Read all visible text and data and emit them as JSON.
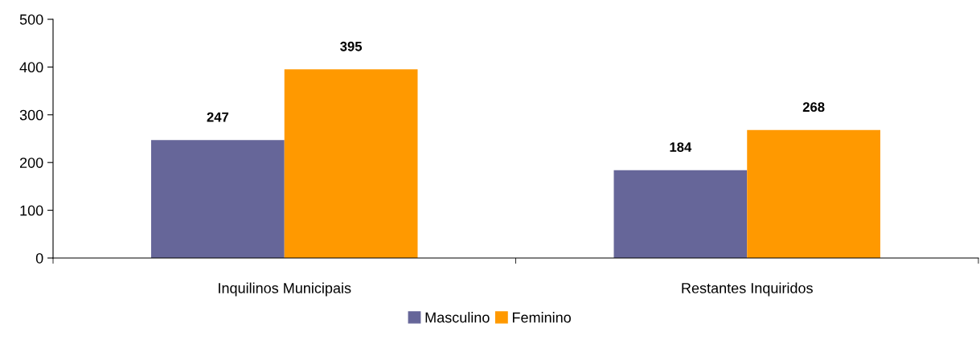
{
  "chart_data": {
    "type": "bar",
    "categories": [
      "Inquilinos Municipais",
      "Restantes Inquiridos"
    ],
    "series": [
      {
        "name": "Masculino",
        "color": "#666699",
        "values": [
          247,
          184
        ]
      },
      {
        "name": "Feminino",
        "color": "#ff9900",
        "values": [
          395,
          268
        ]
      }
    ],
    "ylim": [
      0,
      500
    ],
    "yticks": [
      0,
      100,
      200,
      300,
      400,
      500
    ],
    "data_labels": true,
    "legend": "bottom",
    "grid": false
  }
}
